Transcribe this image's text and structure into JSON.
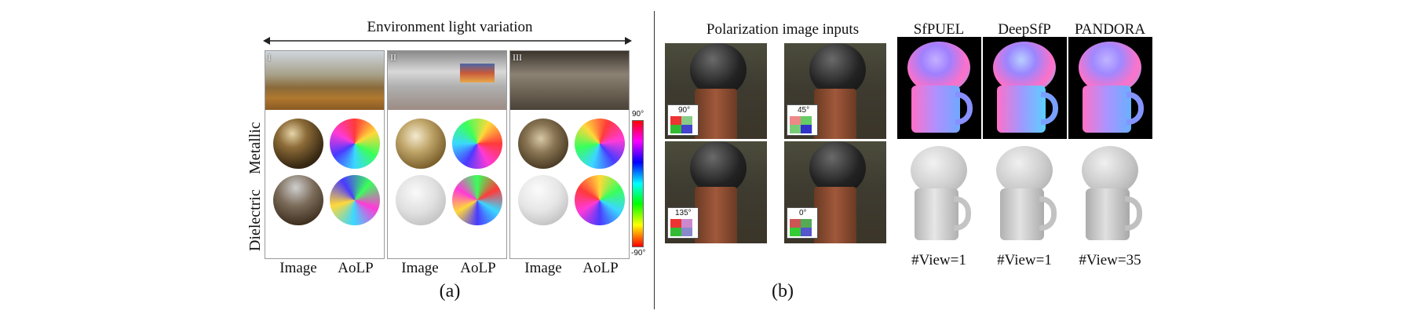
{
  "panel_a": {
    "header": "Environment light variation",
    "roman_labels": [
      "I",
      "II",
      "III"
    ],
    "row_labels": [
      "Metallic",
      "Dielectric"
    ],
    "column_labels": [
      "Image",
      "AoLP",
      "Image",
      "AoLP",
      "Image",
      "AoLP"
    ],
    "colorbar": {
      "top_label": "90°",
      "bottom_label": "-90°"
    },
    "caption": "(a)"
  },
  "panel_b": {
    "title": "Polarization image inputs",
    "polarizer_angles": [
      "90°",
      "45°",
      "135°",
      "0°"
    ],
    "methods": [
      "SfPUEL",
      "DeepSfP",
      "PANDORA"
    ],
    "view_counts": [
      "#View=1",
      "#View=1",
      "#View=35"
    ],
    "caption": "(b)"
  }
}
